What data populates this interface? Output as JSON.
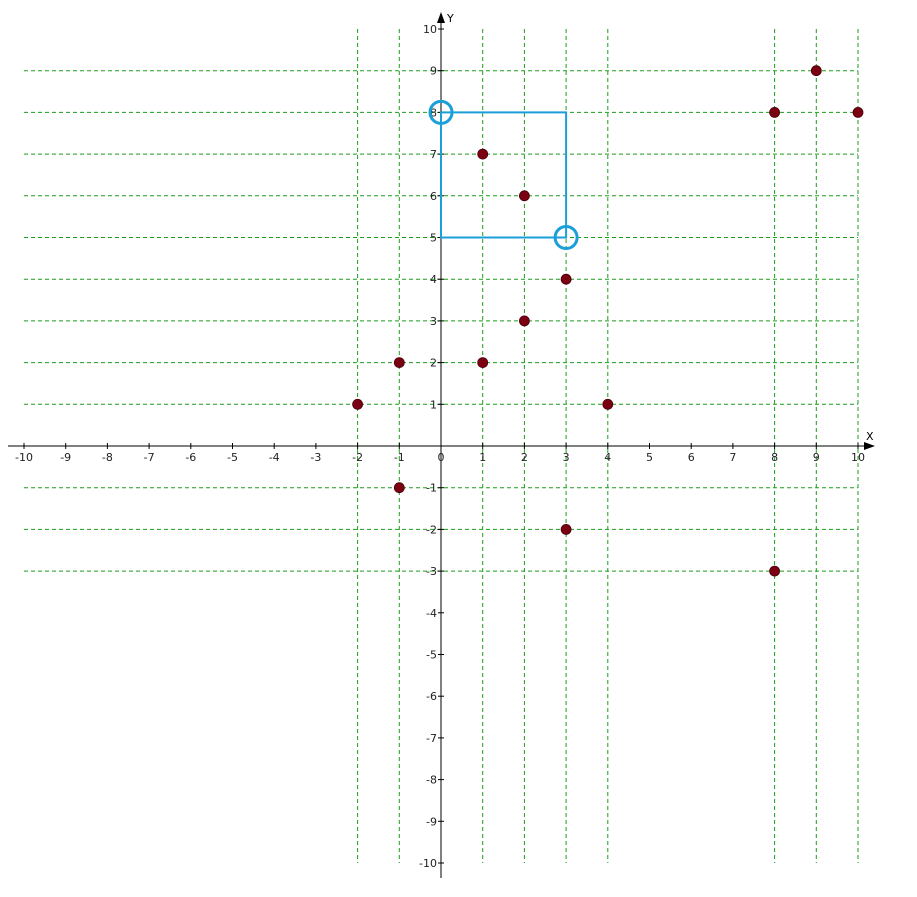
{
  "chart_data": {
    "type": "scatter",
    "xlabel": "X",
    "ylabel": "Y",
    "xlim": [
      -10,
      10
    ],
    "ylim": [
      -10,
      10
    ],
    "x_ticks": [
      -10,
      -9,
      -8,
      -7,
      -6,
      -5,
      -4,
      -3,
      -2,
      -1,
      0,
      1,
      2,
      3,
      4,
      5,
      6,
      7,
      8,
      9,
      10
    ],
    "y_ticks": [
      -10,
      -9,
      -8,
      -7,
      -6,
      -5,
      -4,
      -3,
      -2,
      -1,
      1,
      2,
      3,
      4,
      5,
      6,
      7,
      8,
      9,
      10
    ],
    "gridlines": {
      "vertical_x": [
        -2,
        -1,
        1,
        2,
        3,
        4,
        8,
        9,
        10
      ],
      "horizontal_y": [
        -3,
        -2,
        -1,
        1,
        2,
        3,
        4,
        5,
        6,
        7,
        8,
        9
      ]
    },
    "points": [
      {
        "x": -2,
        "y": 1
      },
      {
        "x": -1,
        "y": 2
      },
      {
        "x": -1,
        "y": -1
      },
      {
        "x": 1,
        "y": 7
      },
      {
        "x": 1,
        "y": 2
      },
      {
        "x": 2,
        "y": 6
      },
      {
        "x": 2,
        "y": 3
      },
      {
        "x": 3,
        "y": 4
      },
      {
        "x": 3,
        "y": -2
      },
      {
        "x": 4,
        "y": 1
      },
      {
        "x": 8,
        "y": 8
      },
      {
        "x": 8,
        "y": -3
      },
      {
        "x": 9,
        "y": 9
      },
      {
        "x": 10,
        "y": 8
      }
    ],
    "selection_rectangle": {
      "x_min": 0,
      "x_max": 3,
      "y_min": 5,
      "y_max": 8
    },
    "handles": [
      {
        "x": 0,
        "y": 8
      },
      {
        "x": 3,
        "y": 5
      }
    ],
    "colors": {
      "point": "#7a0012",
      "grid": "#1a9e1a",
      "axis": "#000000",
      "selection": "#1a9fd8"
    }
  }
}
